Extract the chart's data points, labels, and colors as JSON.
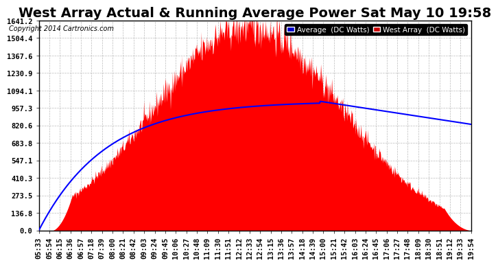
{
  "title": "West Array Actual & Running Average Power Sat May 10 19:58",
  "copyright": "Copyright 2014 Cartronics.com",
  "yticks": [
    0.0,
    136.8,
    273.5,
    410.3,
    547.1,
    683.8,
    820.6,
    957.3,
    1094.1,
    1230.9,
    1367.6,
    1504.4,
    1641.2
  ],
  "ymax": 1641.2,
  "legend_avg_label": "Average  (DC Watts)",
  "legend_west_label": "West Array  (DC Watts)",
  "legend_avg_bg": "#0000cc",
  "legend_west_bg": "#cc0000",
  "bg_color": "#ffffff",
  "plot_bg_color": "#ffffff",
  "grid_color": "#aaaaaa",
  "fill_color": "#ff0000",
  "line_color": "#0000ff",
  "title_fontsize": 14,
  "tick_fontsize": 7.5,
  "xtick_labels": [
    "05:33",
    "05:54",
    "06:15",
    "06:36",
    "06:57",
    "07:18",
    "07:39",
    "08:00",
    "08:21",
    "08:42",
    "09:03",
    "09:24",
    "09:45",
    "10:06",
    "10:27",
    "10:48",
    "11:09",
    "11:30",
    "11:51",
    "12:12",
    "12:33",
    "12:54",
    "13:15",
    "13:36",
    "13:57",
    "14:18",
    "14:39",
    "15:00",
    "15:21",
    "15:42",
    "16:03",
    "16:24",
    "16:45",
    "17:06",
    "17:27",
    "17:48",
    "18:09",
    "18:30",
    "18:51",
    "19:12",
    "19:33",
    "19:54"
  ]
}
